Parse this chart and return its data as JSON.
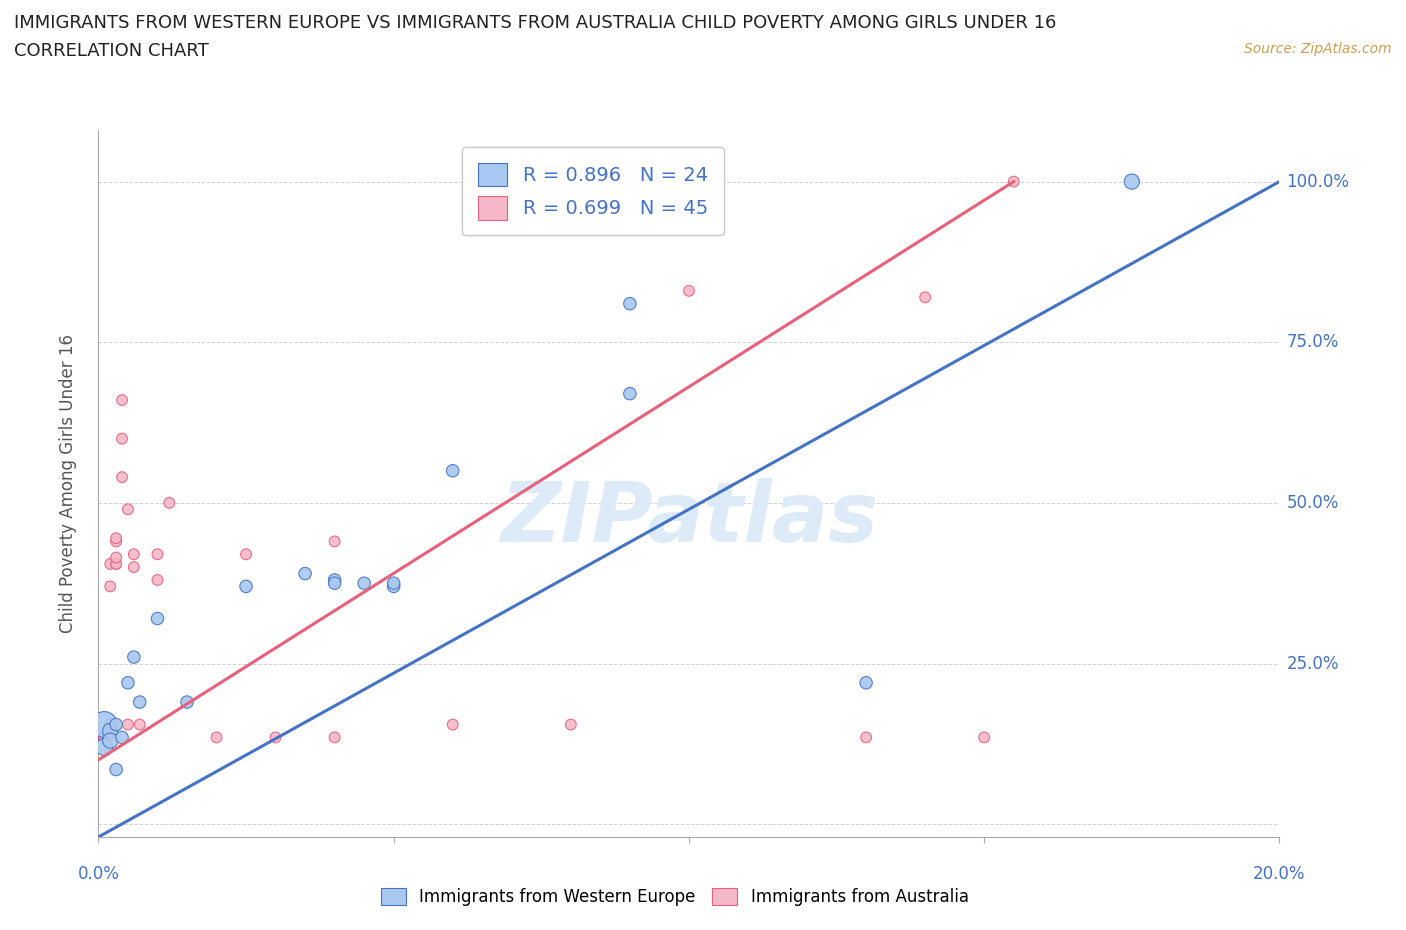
{
  "title": "IMMIGRANTS FROM WESTERN EUROPE VS IMMIGRANTS FROM AUSTRALIA CHILD POVERTY AMONG GIRLS UNDER 16",
  "subtitle": "CORRELATION CHART",
  "source": "Source: ZipAtlas.com",
  "ylabel": "Child Poverty Among Girls Under 16",
  "xlim": [
    0.0,
    0.2
  ],
  "ylim": [
    -0.02,
    1.08
  ],
  "blue_R": 0.896,
  "blue_N": 24,
  "pink_R": 0.699,
  "pink_N": 45,
  "blue_color": "#A8C8F0",
  "pink_color": "#F5B8C8",
  "blue_line_color": "#4472C4",
  "pink_line_color": "#E8607A",
  "watermark": "ZIPatlas",
  "watermark_color": "#DDEAF8",
  "legend_label_blue": "Immigrants from Western Europe",
  "legend_label_pink": "Immigrants from Australia",
  "blue_scatter": [
    [
      0.001,
      0.155
    ],
    [
      0.001,
      0.12
    ],
    [
      0.002,
      0.145
    ],
    [
      0.002,
      0.13
    ],
    [
      0.003,
      0.155
    ],
    [
      0.003,
      0.085
    ],
    [
      0.004,
      0.135
    ],
    [
      0.005,
      0.22
    ],
    [
      0.006,
      0.26
    ],
    [
      0.007,
      0.19
    ],
    [
      0.01,
      0.32
    ],
    [
      0.015,
      0.19
    ],
    [
      0.025,
      0.37
    ],
    [
      0.035,
      0.39
    ],
    [
      0.04,
      0.38
    ],
    [
      0.04,
      0.375
    ],
    [
      0.045,
      0.375
    ],
    [
      0.05,
      0.37
    ],
    [
      0.05,
      0.375
    ],
    [
      0.06,
      0.55
    ],
    [
      0.09,
      0.67
    ],
    [
      0.09,
      0.81
    ],
    [
      0.13,
      0.22
    ],
    [
      0.175,
      1.0
    ]
  ],
  "blue_sizes": [
    350,
    150,
    120,
    120,
    80,
    80,
    80,
    80,
    80,
    80,
    80,
    80,
    80,
    80,
    80,
    80,
    80,
    80,
    80,
    80,
    80,
    80,
    80,
    120
  ],
  "pink_scatter": [
    [
      0.001,
      0.135
    ],
    [
      0.001,
      0.135
    ],
    [
      0.001,
      0.135
    ],
    [
      0.001,
      0.135
    ],
    [
      0.001,
      0.135
    ],
    [
      0.001,
      0.135
    ],
    [
      0.001,
      0.135
    ],
    [
      0.001,
      0.135
    ],
    [
      0.001,
      0.135
    ],
    [
      0.001,
      0.135
    ],
    [
      0.002,
      0.155
    ],
    [
      0.002,
      0.155
    ],
    [
      0.002,
      0.155
    ],
    [
      0.002,
      0.155
    ],
    [
      0.002,
      0.155
    ],
    [
      0.002,
      0.37
    ],
    [
      0.002,
      0.405
    ],
    [
      0.003,
      0.405
    ],
    [
      0.003,
      0.405
    ],
    [
      0.003,
      0.415
    ],
    [
      0.003,
      0.44
    ],
    [
      0.003,
      0.445
    ],
    [
      0.004,
      0.54
    ],
    [
      0.004,
      0.6
    ],
    [
      0.004,
      0.66
    ],
    [
      0.005,
      0.49
    ],
    [
      0.005,
      0.155
    ],
    [
      0.006,
      0.4
    ],
    [
      0.006,
      0.42
    ],
    [
      0.007,
      0.155
    ],
    [
      0.01,
      0.38
    ],
    [
      0.01,
      0.42
    ],
    [
      0.012,
      0.5
    ],
    [
      0.02,
      0.135
    ],
    [
      0.025,
      0.42
    ],
    [
      0.03,
      0.135
    ],
    [
      0.04,
      0.135
    ],
    [
      0.04,
      0.44
    ],
    [
      0.06,
      0.155
    ],
    [
      0.08,
      0.155
    ],
    [
      0.1,
      0.83
    ],
    [
      0.13,
      0.135
    ],
    [
      0.14,
      0.82
    ],
    [
      0.15,
      0.135
    ],
    [
      0.155,
      1.0
    ]
  ],
  "pink_sizes": [
    60,
    60,
    60,
    60,
    60,
    60,
    60,
    60,
    60,
    60,
    60,
    60,
    60,
    60,
    60,
    60,
    60,
    60,
    60,
    60,
    60,
    60,
    60,
    60,
    60,
    60,
    60,
    60,
    60,
    60,
    60,
    60,
    60,
    60,
    60,
    60,
    60,
    60,
    60,
    60,
    60,
    60,
    60,
    60,
    60
  ],
  "blue_line_points": [
    [
      0.0,
      -0.02
    ],
    [
      0.2,
      1.0
    ]
  ],
  "pink_line_points": [
    [
      0.0,
      0.1
    ],
    [
      0.155,
      1.0
    ]
  ]
}
